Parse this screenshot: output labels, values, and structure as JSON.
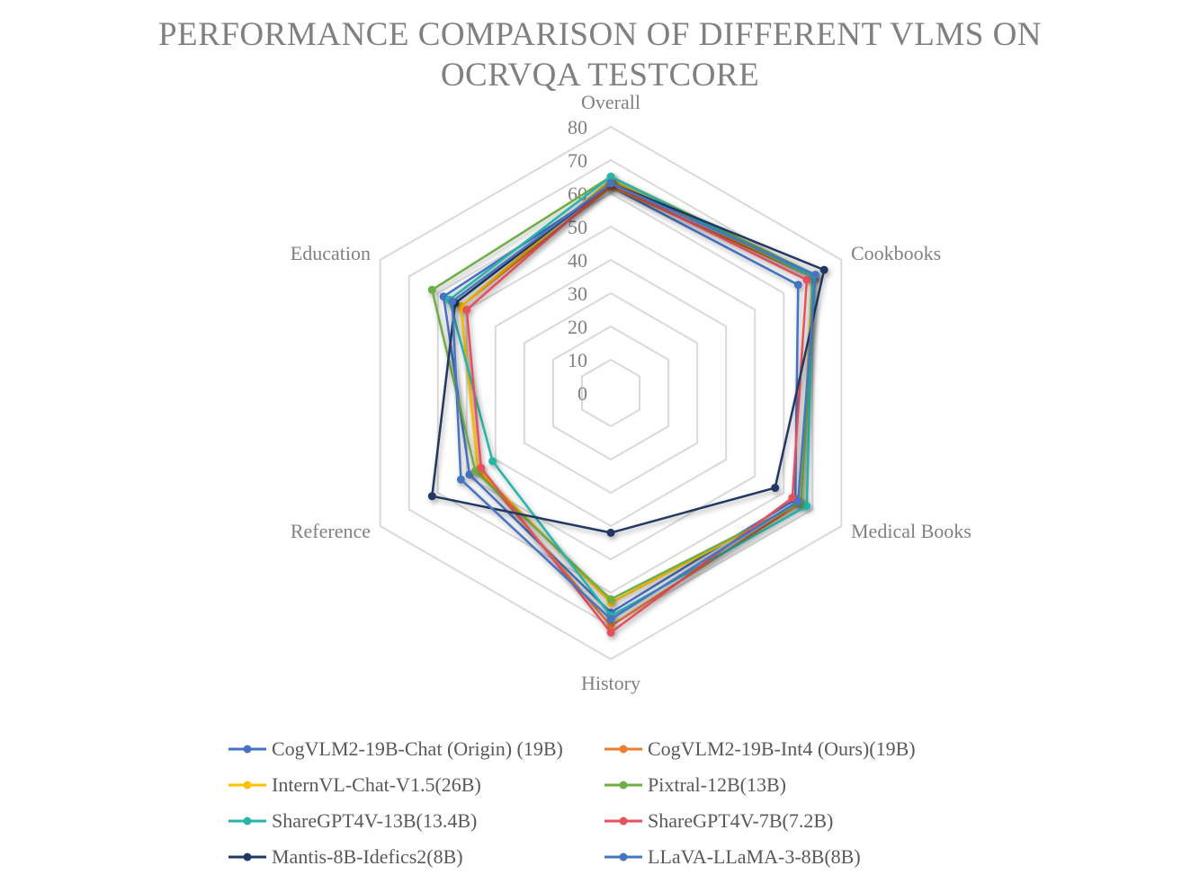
{
  "chart_data": {
    "type": "radar",
    "title": "PERFORMANCE COMPARISON OF DIFFERENT VLMS ON OCRVQA TESTCORE",
    "title_lines": [
      "PERFORMANCE COMPARISON OF DIFFERENT VLMS ON",
      "OCRVQA TESTCORE"
    ],
    "axes": [
      "Overall",
      "Cookbooks",
      "Medical Books",
      "History",
      "Reference",
      "Education"
    ],
    "rlim": [
      0,
      80
    ],
    "ticks": [
      "0",
      "10",
      "20",
      "30",
      "40",
      "50",
      "60",
      "70",
      "80"
    ],
    "grid": true,
    "legend_position": "bottom",
    "series": [
      {
        "name": "CogVLM2-19B-Chat (Origin) (19B)",
        "color": "#4472C4",
        "values": [
          62,
          65,
          64,
          66,
          49,
          58
        ]
      },
      {
        "name": "CogVLM2-19B-Int4 (Ours)(19B)",
        "color": "#ED7D31",
        "values": [
          62,
          70,
          66,
          70,
          46,
          52
        ]
      },
      {
        "name": "InternVL-Chat-V1.5(26B)",
        "color": "#FFC000",
        "values": [
          64,
          70,
          66,
          63,
          46,
          52
        ]
      },
      {
        "name": "Pixtral-12B(13B)",
        "color": "#70AD47",
        "values": [
          65,
          71,
          66,
          62,
          47,
          62
        ]
      },
      {
        "name": "ShareGPT4V-13B(13.4B)",
        "color": "#26B5A8",
        "values": [
          65,
          70,
          68,
          67,
          41,
          56
        ]
      },
      {
        "name": "ShareGPT4V-7B(7.2B)",
        "color": "#E8505B",
        "values": [
          63,
          68,
          63,
          72,
          45,
          50
        ]
      },
      {
        "name": "Mantis-8B-Idefics2(8B)",
        "color": "#203864",
        "values": [
          63,
          74,
          57,
          42,
          62,
          54
        ]
      },
      {
        "name": "LLaVA-LLaMA-3-8B(8B)",
        "color": "#4674C1",
        "values": [
          63,
          71,
          65,
          68,
          52,
          55
        ]
      }
    ]
  }
}
